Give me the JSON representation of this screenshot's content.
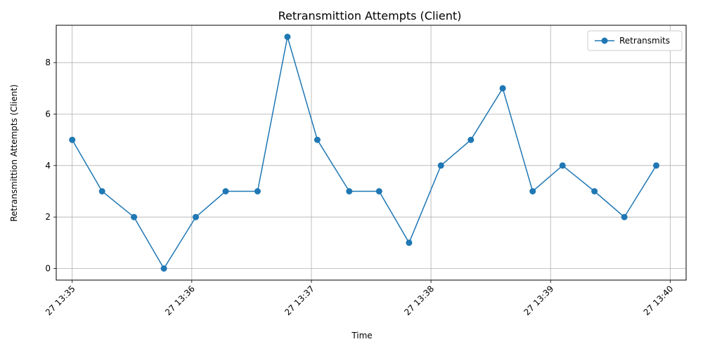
{
  "chart_data": {
    "type": "line",
    "title": "Retransmittion Attempts (Client)",
    "xlabel": "Time",
    "ylabel": "Retransmittion Attempts (Client)",
    "x": [
      "27 13:35:00",
      "27 13:35:15",
      "27 13:35:31",
      "27 13:35:46",
      "27 13:36:02",
      "27 13:36:17",
      "27 13:36:33",
      "27 13:36:48",
      "27 13:37:03",
      "27 13:37:19",
      "27 13:37:34",
      "27 13:37:49",
      "27 13:38:05",
      "27 13:38:20",
      "27 13:38:36",
      "27 13:38:51",
      "27 13:39:06",
      "27 13:39:22",
      "27 13:39:37",
      "27 13:39:53"
    ],
    "series": [
      {
        "name": "Retransmits",
        "color": "#1f77b4",
        "marker": "circle",
        "values": [
          5,
          3,
          2,
          0,
          2,
          3,
          3,
          9,
          5,
          3,
          3,
          1,
          4,
          5,
          7,
          3,
          4,
          3,
          2,
          4
        ]
      }
    ],
    "x_ticks": [
      "27 13:35",
      "27 13:36",
      "27 13:37",
      "27 13:38",
      "27 13:39",
      "27 13:40"
    ],
    "y_ticks": [
      "0",
      "2",
      "4",
      "6",
      "8"
    ],
    "ylim": [
      -0.45,
      9.45
    ],
    "xlim": [
      "27 13:34:52",
      "27 13:40:08"
    ],
    "grid": true,
    "legend_position": "top-right"
  }
}
